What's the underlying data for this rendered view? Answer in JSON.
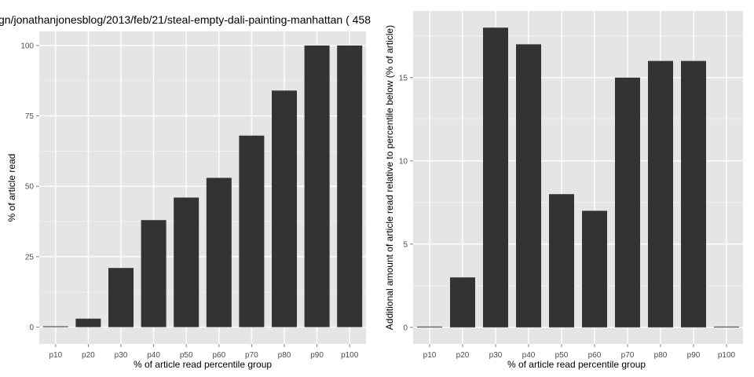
{
  "colors": {
    "panel_bg": "#e5e5e5",
    "grid_major": "#ffffff",
    "grid_minor": "#f2f2f2",
    "bar_fill": "#333333",
    "tick_text": "#4d4d4d"
  },
  "chart_data": [
    {
      "type": "bar",
      "title": "gn/jonathanjonesblog/2013/feb/21/steal-empty-dali-painting-manhattan ( 458",
      "xlabel": "% of article read percentile group",
      "ylabel": "% of article read",
      "categories": [
        "p10",
        "p20",
        "p30",
        "p40",
        "p50",
        "p60",
        "p70",
        "p80",
        "p90",
        "p100"
      ],
      "values": [
        0,
        3,
        21,
        38,
        46,
        53,
        68,
        84,
        100,
        100
      ],
      "ylim": [
        -6,
        105
      ],
      "yticks": [
        0,
        25,
        50,
        75,
        100
      ],
      "grid": true
    },
    {
      "type": "bar",
      "title": "",
      "xlabel": "% of article read percentile group",
      "ylabel": "Additional amount of article read relative to percentile below (% of article)",
      "categories": [
        "p10",
        "p20",
        "p30",
        "p40",
        "p50",
        "p60",
        "p70",
        "p80",
        "p90",
        "p100"
      ],
      "values": [
        0,
        3,
        18,
        17,
        8,
        7,
        15,
        16,
        16,
        0
      ],
      "ylim": [
        -1,
        19
      ],
      "yticks": [
        0,
        5,
        10,
        15
      ],
      "grid": true
    }
  ]
}
